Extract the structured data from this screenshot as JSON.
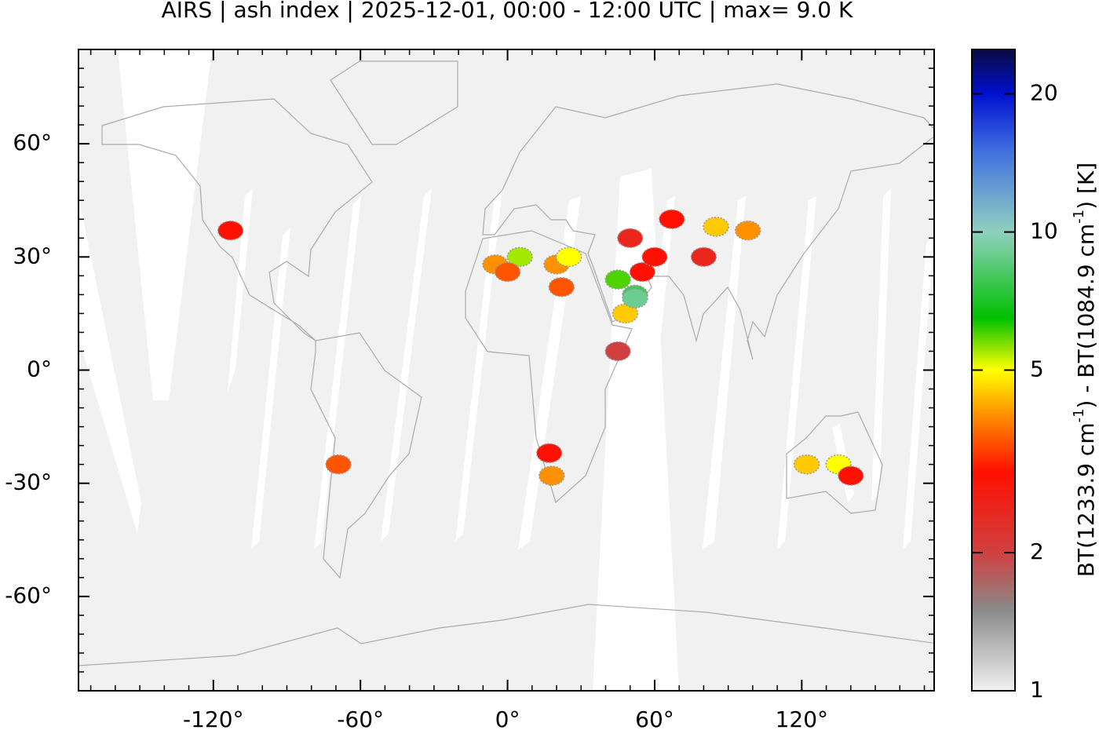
{
  "chart_data": {
    "type": "map",
    "title": "AIRS | ash index | 2025-12-01, 00:00 - 12:00 UTC | max= 9.0 K",
    "colorbar_label": [
      "BT(1233.9 cm",
      "-1",
      ") - BT(1084.9 cm",
      "-1",
      ") [K]"
    ],
    "xlim": [
      -175,
      174
    ],
    "ylim": [
      -85,
      85
    ],
    "xticks": [
      {
        "value": -120,
        "label": "-120°"
      },
      {
        "value": -60,
        "label": "-60°"
      },
      {
        "value": 0,
        "label": "0°"
      },
      {
        "value": 60,
        "label": "60°"
      },
      {
        "value": 120,
        "label": "120°"
      }
    ],
    "yticks": [
      {
        "value": 60,
        "label": "60°"
      },
      {
        "value": 30,
        "label": "30°"
      },
      {
        "value": 0,
        "label": "0°"
      },
      {
        "value": -30,
        "label": "-30°"
      },
      {
        "value": -60,
        "label": "-60°"
      }
    ],
    "xminorticks": [
      -170,
      -160,
      -150,
      -140,
      -130,
      -110,
      -100,
      -90,
      -80,
      -70,
      -50,
      -40,
      -30,
      -20,
      -10,
      10,
      20,
      30,
      40,
      50,
      70,
      80,
      90,
      100,
      110,
      130,
      140,
      150,
      160,
      170
    ],
    "yminorticks": [
      80,
      75,
      70,
      65,
      55,
      50,
      45,
      40,
      35,
      25,
      20,
      15,
      10,
      5,
      -5,
      -10,
      -15,
      -20,
      -25,
      -35,
      -40,
      -45,
      -50,
      -55,
      -65,
      -70,
      -75,
      -80
    ],
    "clim": [
      1,
      25
    ],
    "cticks": [
      1,
      2,
      5,
      10,
      20
    ],
    "log_colorbar": true,
    "colormap": [
      [
        1,
        "#f0f0f0"
      ],
      [
        1.5,
        "#8a8a8a"
      ],
      [
        2,
        "#d04040"
      ],
      [
        3,
        "#ff1000"
      ],
      [
        4,
        "#ff9000"
      ],
      [
        5,
        "#ffff00"
      ],
      [
        6.5,
        "#00c000"
      ],
      [
        10,
        "#90d0c0"
      ],
      [
        15,
        "#4070e0"
      ],
      [
        20,
        "#0010d0"
      ],
      [
        25,
        "#0a0a40"
      ]
    ],
    "lon": [
      -113,
      -5,
      5,
      0,
      20,
      22,
      25,
      45,
      52,
      48,
      55,
      52,
      60,
      50,
      67,
      85,
      98,
      80,
      17,
      18,
      -69,
      122,
      135,
      140,
      45
    ],
    "lat": [
      37,
      28,
      30,
      26,
      28,
      22,
      30,
      24,
      20,
      15,
      26,
      19,
      30,
      35,
      40,
      38,
      37,
      30,
      -22,
      -28,
      -25,
      -25,
      -25,
      -28,
      5
    ],
    "values": [
      3,
      4,
      5.5,
      3.5,
      4,
      3.5,
      5,
      6,
      8,
      4.5,
      3,
      9,
      3,
      2.5,
      3,
      4.5,
      4,
      2.5,
      3,
      4,
      3.5,
      4.5,
      5,
      3,
      2
    ]
  }
}
